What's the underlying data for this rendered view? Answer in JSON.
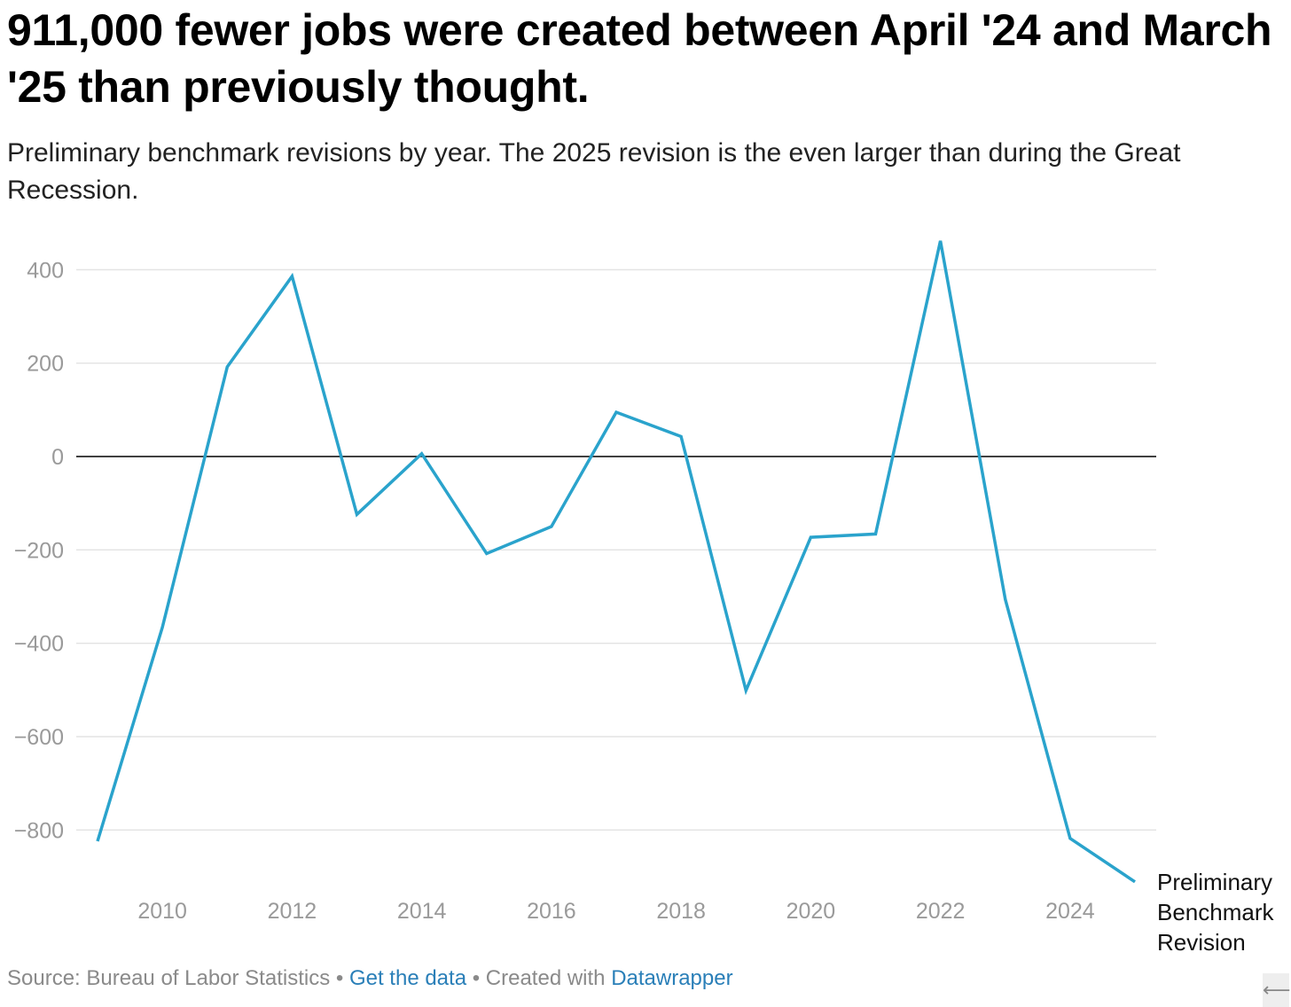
{
  "header": {
    "title": "911,000 fewer jobs were created between April '24 and March '25 than previously thought.",
    "subtitle": "Preliminary benchmark revisions by year. The 2025 revision is the even larger than during the Great Recession."
  },
  "footer": {
    "source": "Source: Bureau of Labor Statistics",
    "sep1": " • ",
    "get_data": "Get the data",
    "sep2": " • Created with ",
    "tool": "Datawrapper"
  },
  "corner_icon": "arrow-left-icon",
  "colors": {
    "line": "#2aa3cc",
    "grid": "#e3e3e3",
    "zero": "#000000",
    "tick": "#9a9a9a",
    "link": "#2a7fb8"
  },
  "chart_data": {
    "type": "line",
    "x": [
      2009,
      2010,
      2011,
      2012,
      2013,
      2014,
      2015,
      2016,
      2017,
      2018,
      2019,
      2020,
      2021,
      2022,
      2023,
      2024,
      2025
    ],
    "series": [
      {
        "name": "Preliminary Benchmark Revision",
        "values": [
          -824,
          -366,
          192,
          386,
          -124,
          6,
          -208,
          -150,
          95,
          43,
          -501,
          -173,
          -166,
          462,
          -306,
          -818,
          -911
        ]
      }
    ],
    "y_ticks": [
      400,
      200,
      0,
      -200,
      -400,
      -600,
      -800
    ],
    "y_tick_labels": [
      "400",
      "200",
      "0",
      "−200",
      "−400",
      "−600",
      "−800"
    ],
    "x_ticks": [
      2010,
      2012,
      2014,
      2016,
      2018,
      2020,
      2022,
      2024
    ],
    "ylim": [
      -930,
      480
    ],
    "xlim": [
      2009,
      2025
    ],
    "grid": true,
    "legend": "direct label at line end (right)",
    "xlabel": "",
    "ylabel": ""
  }
}
